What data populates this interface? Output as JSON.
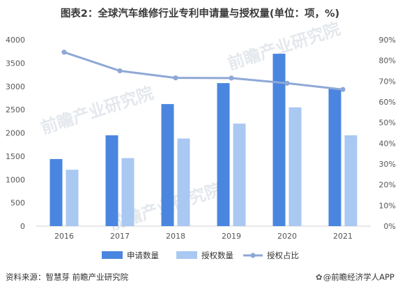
{
  "title": "图表2：全球汽车维修行业专利申请量与授权量(单位：项，%)",
  "source": "资料来源：智慧芽 前瞻产业研究院",
  "brand": "@前瞻经济学人APP",
  "brand_icon": "wechat-like-icon",
  "watermark": "前瞻产业研究院",
  "colors": {
    "applications": "#4a86e0",
    "grants": "#a9c8f2",
    "ratio": "#8ea8d6"
  },
  "chart_data": {
    "type": "bar",
    "categories": [
      "2016",
      "2017",
      "2018",
      "2019",
      "2020",
      "2021"
    ],
    "series": [
      {
        "name": "申请数量",
        "type": "bar",
        "axis": "left",
        "values": [
          1440,
          1950,
          2620,
          3070,
          3700,
          2950
        ]
      },
      {
        "name": "授权数量",
        "type": "bar",
        "axis": "left",
        "values": [
          1210,
          1460,
          1880,
          2200,
          2550,
          1950
        ]
      },
      {
        "name": "授权占比",
        "type": "line",
        "axis": "right",
        "values": [
          84,
          75,
          71.6,
          71.5,
          69,
          66
        ]
      }
    ],
    "y_left": {
      "min": 0,
      "max": 4000,
      "step": 500,
      "ticks": [
        "0",
        "500",
        "1000",
        "1500",
        "2000",
        "2500",
        "3000",
        "3500",
        "4000"
      ]
    },
    "y_right": {
      "min": 0,
      "max": 90,
      "step": 10,
      "ticks": [
        "0%",
        "10%",
        "20%",
        "30%",
        "40%",
        "50%",
        "60%",
        "70%",
        "80%",
        "90%"
      ]
    },
    "grid": false,
    "legend": "bottom"
  }
}
